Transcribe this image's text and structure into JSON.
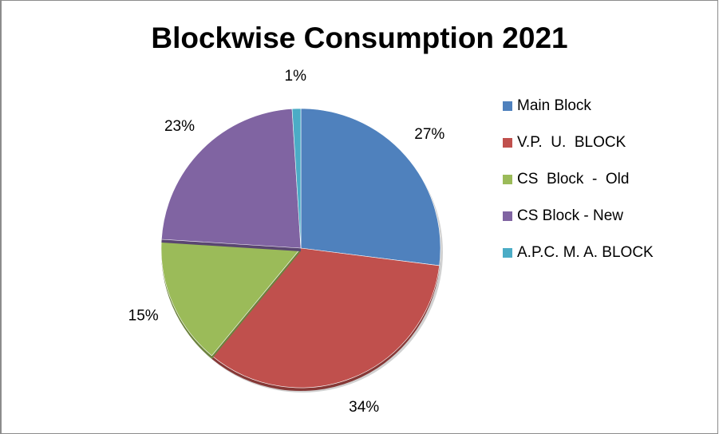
{
  "chart_data": {
    "type": "pie",
    "title": "Blockwise Consumption 2021",
    "slices": [
      {
        "label": "Main Block",
        "value": 27,
        "display": "27%",
        "color": "#4f81bd"
      },
      {
        "label": "V.P.  U.  BLOCK",
        "value": 34,
        "display": "34%",
        "color": "#c0504d"
      },
      {
        "label": "CS  Block  -  Old",
        "value": 15,
        "display": "15%",
        "color": "#9bbb59"
      },
      {
        "label": "CS Block - New",
        "value": 23,
        "display": "23%",
        "color": "#8064a2"
      },
      {
        "label": "A.P.C. M. A. BLOCK",
        "value": 1,
        "display": "1%",
        "color": "#4bacc6"
      }
    ],
    "start_angle_deg": 0,
    "direction": "clockwise",
    "legend_position": "right"
  }
}
